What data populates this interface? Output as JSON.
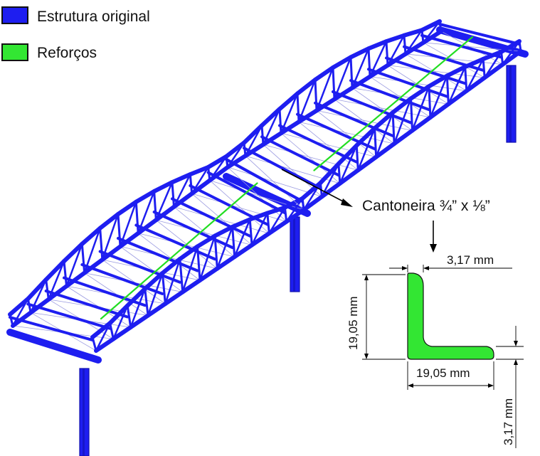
{
  "legend": {
    "items": [
      {
        "label": "Estrutura original",
        "color": "#1e1ef0"
      },
      {
        "label": "Reforços",
        "color": "#33e633"
      }
    ]
  },
  "callout": {
    "label": "Cantoneira ¾” x ⅛”"
  },
  "section": {
    "fill_color": "#33e633",
    "dim_thickness_top": "3,17 mm",
    "dim_height": "19,05 mm",
    "dim_width": "19,05 mm",
    "dim_thickness_right": "3,17 mm"
  },
  "colors": {
    "structure": "#1e1ef0",
    "structure_dark": "#1010b0",
    "reinforcement": "#22dd22",
    "bracing": "#9a9ae0"
  }
}
